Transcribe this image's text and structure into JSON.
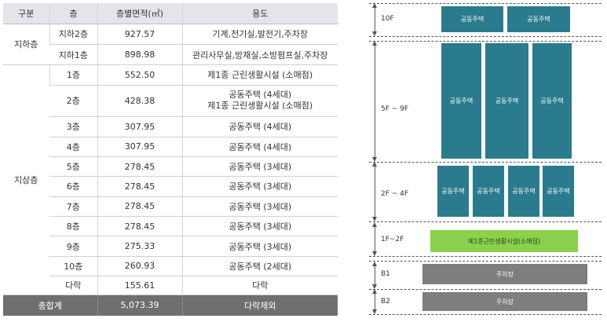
{
  "table": {
    "headers": [
      "구분",
      "층",
      "층별면적(㎡)",
      "용도"
    ],
    "groups": {
      "basement": "지하층",
      "above": "지상층"
    },
    "rows": [
      {
        "floor": "지하2층",
        "area": "927.57",
        "use": "기계,전기실,발전기,주차장"
      },
      {
        "floor": "지하1층",
        "area": "898.98",
        "use": "관리사무실,방재실,소방펌프실,주차장"
      },
      {
        "floor": "1층",
        "area": "552.50",
        "use": "제1종 근린생활시설 (소매점)"
      },
      {
        "floor": "2층",
        "area": "428.38",
        "use": "공동주택 (4세대)",
        "use2": "제1종 근린생활시설 (소매점)"
      },
      {
        "floor": "3층",
        "area": "307.95",
        "use": "공동주택 (4세대)"
      },
      {
        "floor": "4층",
        "area": "307.95",
        "use": "공동주택 (4세대)"
      },
      {
        "floor": "5층",
        "area": "278.45",
        "use": "공동주택 (3세대)"
      },
      {
        "floor": "6층",
        "area": "278.45",
        "use": "공동주택 (3세대)"
      },
      {
        "floor": "7층",
        "area": "278.45",
        "use": "공동주택 (3세대)"
      },
      {
        "floor": "8층",
        "area": "278.45",
        "use": "공동주택 (3세대)"
      },
      {
        "floor": "9층",
        "area": "275.33",
        "use": "공동주택 (3세대)"
      },
      {
        "floor": "10층",
        "area": "260.93",
        "use": "공동주택 (2세대)"
      },
      {
        "floor": "다락",
        "area": "155.61",
        "use": "다락"
      }
    ],
    "total": {
      "label": "총합계",
      "area": "5,073.39",
      "note": "다락제외"
    }
  },
  "diagram": {
    "levels": {
      "f10": "10F",
      "f5_9": "5F ~ 9F",
      "f2_4": "2F ~ 4F",
      "f1_2": "1F~2F",
      "b1": "B1",
      "b2": "B2"
    },
    "housing_label": "공동주택",
    "retail_label": "제1종근린생활시설(소매점)",
    "parking_label": "주차장",
    "colors": {
      "housing": "#2a7b8e",
      "retail": "#8bd14d",
      "parking": "#7e7e7e",
      "header_bg": "#e3e5ea",
      "total_bg": "#6f6f6f"
    }
  }
}
